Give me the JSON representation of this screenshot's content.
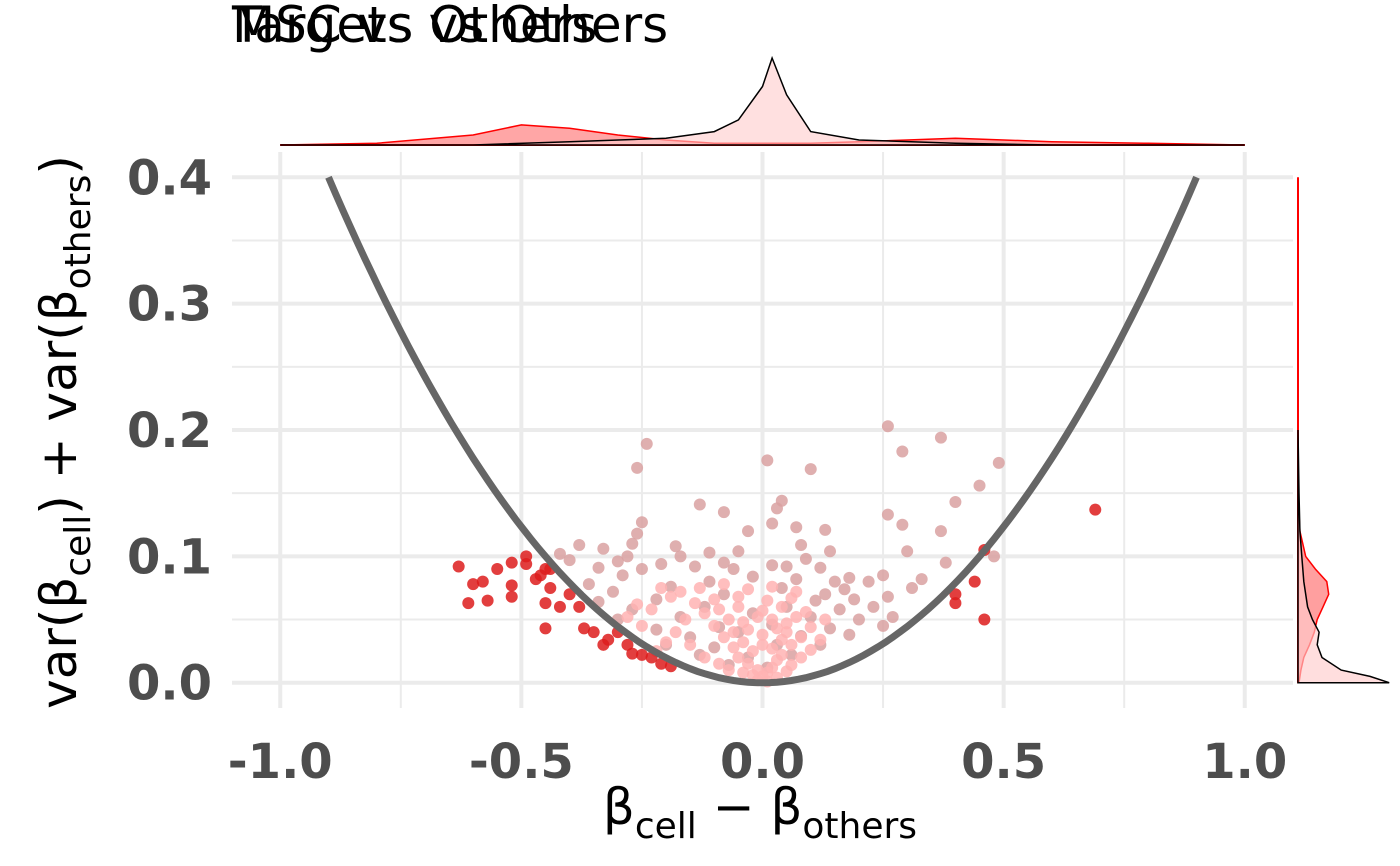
{
  "titles": [
    "MSC vs Others",
    "Targets vs Others"
  ],
  "chart_data": {
    "type": "scatter",
    "xlim": [
      -1.1,
      1.1
    ],
    "ylim": [
      -0.02,
      0.42
    ],
    "x_ticks": [
      {
        "value": -1.0,
        "label": "-1.0"
      },
      {
        "value": -0.5,
        "label": "-0.5"
      },
      {
        "value": 0.0,
        "label": "0.0"
      },
      {
        "value": 0.5,
        "label": "0.5"
      },
      {
        "value": 1.0,
        "label": "1.0"
      }
    ],
    "y_ticks": [
      {
        "value": 0.0,
        "label": "0.0"
      },
      {
        "value": 0.1,
        "label": "0.1"
      },
      {
        "value": 0.2,
        "label": "0.2"
      },
      {
        "value": 0.3,
        "label": "0.3"
      },
      {
        "value": 0.4,
        "label": "0.4"
      }
    ],
    "xlabel": {
      "main1": "β",
      "sub1": "cell",
      "mid": " − β",
      "sub2": "others"
    },
    "ylabel": {
      "pre": "var(β",
      "sub1": "cell",
      "mid": ") + var(β",
      "sub2": "others",
      "post": ")"
    },
    "grid": true,
    "colors": {
      "significant": "#dd1c1c",
      "nonsignificant": "#d9a1a1",
      "dense_core": "#ffb3b3",
      "curve": "#666666",
      "density_line": "#ff0000",
      "density_fill_a": "#ff6b6b",
      "density_fill_b": "#ffcccc",
      "grid": "#ebebeb"
    },
    "threshold_curve": {
      "formula": "y = 0.4938 * x^2",
      "x_range": [
        -0.9,
        0.9
      ]
    },
    "series": [
      {
        "group": "significant",
        "points": [
          [
            -0.63,
            0.092
          ],
          [
            -0.61,
            0.063
          ],
          [
            -0.6,
            0.078
          ],
          [
            -0.58,
            0.08
          ],
          [
            -0.57,
            0.065
          ],
          [
            -0.55,
            0.09
          ],
          [
            -0.52,
            0.095
          ],
          [
            -0.52,
            0.077
          ],
          [
            -0.52,
            0.068
          ],
          [
            -0.49,
            0.094
          ],
          [
            -0.49,
            0.1
          ],
          [
            -0.47,
            0.082
          ],
          [
            -0.46,
            0.085
          ],
          [
            -0.45,
            0.09
          ],
          [
            -0.45,
            0.063
          ],
          [
            -0.45,
            0.043
          ],
          [
            -0.44,
            0.075
          ],
          [
            -0.44,
            0.09
          ],
          [
            -0.42,
            0.06
          ],
          [
            -0.4,
            0.07
          ],
          [
            -0.38,
            0.06
          ],
          [
            -0.37,
            0.043
          ],
          [
            -0.35,
            0.04
          ],
          [
            -0.33,
            0.03
          ],
          [
            -0.32,
            0.034
          ],
          [
            -0.3,
            0.04
          ],
          [
            -0.28,
            0.03
          ],
          [
            -0.27,
            0.023
          ],
          [
            -0.25,
            0.022
          ],
          [
            -0.23,
            0.02
          ],
          [
            -0.21,
            0.015
          ],
          [
            -0.19,
            0.013
          ],
          [
            0.4,
            0.063
          ],
          [
            0.4,
            0.07
          ],
          [
            0.44,
            0.08
          ],
          [
            0.46,
            0.05
          ],
          [
            0.46,
            0.105
          ],
          [
            0.69,
            0.137
          ]
        ]
      },
      {
        "group": "nonsignificant",
        "points": [
          [
            0.26,
            0.203
          ],
          [
            0.37,
            0.194
          ],
          [
            -0.24,
            0.189
          ],
          [
            0.29,
            0.183
          ],
          [
            0.49,
            0.174
          ],
          [
            0.01,
            0.176
          ],
          [
            -0.26,
            0.17
          ],
          [
            0.1,
            0.169
          ],
          [
            0.45,
            0.156
          ],
          [
            0.4,
            0.143
          ],
          [
            -0.13,
            0.141
          ],
          [
            0.04,
            0.144
          ],
          [
            0.03,
            0.138
          ],
          [
            -0.08,
            0.135
          ],
          [
            0.26,
            0.133
          ],
          [
            0.29,
            0.125
          ],
          [
            -0.25,
            0.127
          ],
          [
            0.02,
            0.126
          ],
          [
            0.07,
            0.123
          ],
          [
            0.37,
            0.12
          ],
          [
            -0.26,
            0.118
          ],
          [
            -0.03,
            0.12
          ],
          [
            0.13,
            0.121
          ],
          [
            -0.27,
            0.11
          ],
          [
            0.08,
            0.109
          ],
          [
            -0.18,
            0.108
          ],
          [
            -0.38,
            0.109
          ],
          [
            -0.33,
            0.106
          ],
          [
            -0.42,
            0.102
          ],
          [
            0.14,
            0.104
          ],
          [
            -0.11,
            0.103
          ],
          [
            -0.05,
            0.104
          ],
          [
            0.3,
            0.104
          ],
          [
            0.48,
            0.1
          ],
          [
            -0.28,
            0.1
          ],
          [
            -0.17,
            0.1
          ],
          [
            0.09,
            0.098
          ],
          [
            -0.4,
            0.097
          ],
          [
            -0.3,
            0.096
          ],
          [
            -0.08,
            0.095
          ],
          [
            0.38,
            0.095
          ],
          [
            -0.21,
            0.094
          ],
          [
            0.02,
            0.093
          ],
          [
            -0.14,
            0.092
          ],
          [
            0.05,
            0.092
          ],
          [
            0.12,
            0.091
          ],
          [
            -0.34,
            0.091
          ],
          [
            -0.25,
            0.09
          ],
          [
            -0.06,
            0.09
          ],
          [
            0.25,
            0.085
          ],
          [
            0.33,
            0.082
          ],
          [
            0.18,
            0.083
          ],
          [
            0.07,
            0.082
          ],
          [
            -0.02,
            0.084
          ],
          [
            -0.29,
            0.085
          ],
          [
            0.15,
            0.08
          ],
          [
            0.22,
            0.08
          ],
          [
            -0.36,
            0.078
          ],
          [
            -0.11,
            0.08
          ],
          [
            0.31,
            0.075
          ],
          [
            0.17,
            0.074
          ],
          [
            0.04,
            0.075
          ],
          [
            -0.19,
            0.076
          ],
          [
            -0.31,
            0.072
          ],
          [
            0.13,
            0.07
          ],
          [
            0.26,
            0.068
          ],
          [
            -0.08,
            0.07
          ],
          [
            0.19,
            0.066
          ],
          [
            0.11,
            0.065
          ],
          [
            -0.22,
            0.066
          ],
          [
            -0.34,
            0.064
          ],
          [
            0.23,
            0.06
          ],
          [
            0.16,
            0.058
          ],
          [
            0.05,
            0.06
          ],
          [
            -0.12,
            0.06
          ],
          [
            -0.27,
            0.058
          ],
          [
            0.27,
            0.052
          ],
          [
            0.2,
            0.05
          ],
          [
            0.1,
            0.052
          ],
          [
            -0.02,
            0.055
          ],
          [
            -0.17,
            0.052
          ],
          [
            -0.3,
            0.05
          ],
          [
            0.25,
            0.045
          ],
          [
            0.14,
            0.043
          ],
          [
            0.02,
            0.046
          ],
          [
            -0.09,
            0.044
          ],
          [
            -0.22,
            0.042
          ],
          [
            0.18,
            0.038
          ],
          [
            0.08,
            0.037
          ],
          [
            -0.05,
            0.04
          ],
          [
            -0.15,
            0.036
          ],
          [
            0.12,
            0.03
          ],
          [
            0.03,
            0.03
          ],
          [
            -0.1,
            0.028
          ],
          [
            -0.2,
            0.03
          ],
          [
            0.06,
            0.022
          ],
          [
            -0.03,
            0.02
          ],
          [
            -0.13,
            0.022
          ],
          [
            0.01,
            0.012
          ],
          [
            -0.07,
            0.014
          ]
        ]
      },
      {
        "group": "dense_core",
        "points": [
          [
            -0.05,
            0.02
          ],
          [
            -0.03,
            0.015
          ],
          [
            -0.01,
            0.01
          ],
          [
            0.0,
            0.005
          ],
          [
            0.01,
            0.008
          ],
          [
            0.02,
            0.012
          ],
          [
            0.03,
            0.018
          ],
          [
            0.04,
            0.022
          ],
          [
            -0.06,
            0.028
          ],
          [
            -0.04,
            0.032
          ],
          [
            -0.02,
            0.025
          ],
          [
            0.0,
            0.03
          ],
          [
            0.02,
            0.027
          ],
          [
            0.04,
            0.034
          ],
          [
            0.06,
            0.03
          ],
          [
            -0.08,
            0.036
          ],
          [
            -0.06,
            0.04
          ],
          [
            -0.03,
            0.042
          ],
          [
            0.0,
            0.038
          ],
          [
            0.03,
            0.043
          ],
          [
            0.05,
            0.04
          ],
          [
            0.08,
            0.036
          ],
          [
            -0.1,
            0.045
          ],
          [
            -0.07,
            0.05
          ],
          [
            -0.04,
            0.048
          ],
          [
            -0.01,
            0.052
          ],
          [
            0.02,
            0.05
          ],
          [
            0.05,
            0.047
          ],
          [
            0.07,
            0.052
          ],
          [
            -0.12,
            0.055
          ],
          [
            -0.09,
            0.058
          ],
          [
            -0.05,
            0.06
          ],
          [
            0.0,
            0.057
          ],
          [
            0.04,
            0.06
          ],
          [
            0.09,
            0.056
          ],
          [
            -0.14,
            0.063
          ],
          [
            -0.1,
            0.066
          ],
          [
            -0.05,
            0.068
          ],
          [
            0.01,
            0.065
          ],
          [
            0.06,
            0.067
          ],
          [
            -0.16,
            0.05
          ],
          [
            -0.18,
            0.04
          ],
          [
            -0.2,
            0.032
          ],
          [
            -0.22,
            0.025
          ],
          [
            -0.15,
            0.03
          ],
          [
            -0.12,
            0.02
          ],
          [
            -0.09,
            0.015
          ],
          [
            -0.07,
            0.01
          ],
          [
            0.06,
            0.014
          ],
          [
            0.08,
            0.02
          ],
          [
            0.1,
            0.026
          ],
          [
            0.12,
            0.034
          ],
          [
            0.1,
            0.044
          ],
          [
            0.13,
            0.05
          ],
          [
            -0.25,
            0.045
          ],
          [
            -0.28,
            0.052
          ],
          [
            -0.26,
            0.062
          ],
          [
            -0.23,
            0.058
          ],
          [
            -0.19,
            0.068
          ],
          [
            -0.21,
            0.075
          ],
          [
            -0.17,
            0.072
          ],
          [
            -0.13,
            0.075
          ],
          [
            -0.08,
            0.078
          ],
          [
            -0.03,
            0.074
          ],
          [
            0.02,
            0.076
          ],
          [
            0.07,
            0.072
          ],
          [
            -0.01,
            0.002
          ],
          [
            0.01,
            0.001
          ],
          [
            -0.02,
            0.006
          ],
          [
            0.03,
            0.004
          ],
          [
            -0.04,
            0.008
          ],
          [
            0.05,
            0.009
          ]
        ]
      }
    ],
    "marginal_x_density": {
      "groups": [
        {
          "name": "significant",
          "x": [
            -1.0,
            -0.8,
            -0.6,
            -0.5,
            -0.4,
            -0.3,
            -0.2,
            -0.1,
            0.0,
            0.1,
            0.2,
            0.3,
            0.4,
            0.5,
            0.6,
            0.8,
            1.0
          ],
          "density": [
            0,
            0.01,
            0.06,
            0.12,
            0.1,
            0.06,
            0.03,
            0.01,
            0.01,
            0.01,
            0.02,
            0.03,
            0.04,
            0.03,
            0.02,
            0.01,
            0
          ]
        },
        {
          "name": "nonsignificant",
          "x": [
            -1.0,
            -0.6,
            -0.4,
            -0.2,
            -0.1,
            -0.05,
            0.0,
            0.02,
            0.05,
            0.1,
            0.2,
            0.4,
            0.6,
            1.0
          ],
          "density": [
            0,
            0,
            0.02,
            0.04,
            0.08,
            0.15,
            0.35,
            0.52,
            0.3,
            0.08,
            0.03,
            0.01,
            0,
            0
          ]
        }
      ]
    },
    "marginal_y_density": {
      "groups": [
        {
          "name": "significant",
          "y": [
            0.0,
            0.01,
            0.02,
            0.03,
            0.04,
            0.05,
            0.06,
            0.07,
            0.08,
            0.09,
            0.1,
            0.12,
            0.15
          ],
          "density": [
            0.01,
            0.03,
            0.06,
            0.12,
            0.17,
            0.2,
            0.26,
            0.32,
            0.3,
            0.18,
            0.08,
            0.02,
            0
          ]
        },
        {
          "name": "nonsignificant",
          "y": [
            0.0,
            0.005,
            0.01,
            0.02,
            0.03,
            0.04,
            0.05,
            0.06,
            0.08,
            0.1,
            0.12,
            0.15,
            0.2
          ],
          "density": [
            0.95,
            0.75,
            0.45,
            0.25,
            0.2,
            0.22,
            0.15,
            0.1,
            0.06,
            0.04,
            0.02,
            0.01,
            0
          ]
        }
      ]
    }
  }
}
